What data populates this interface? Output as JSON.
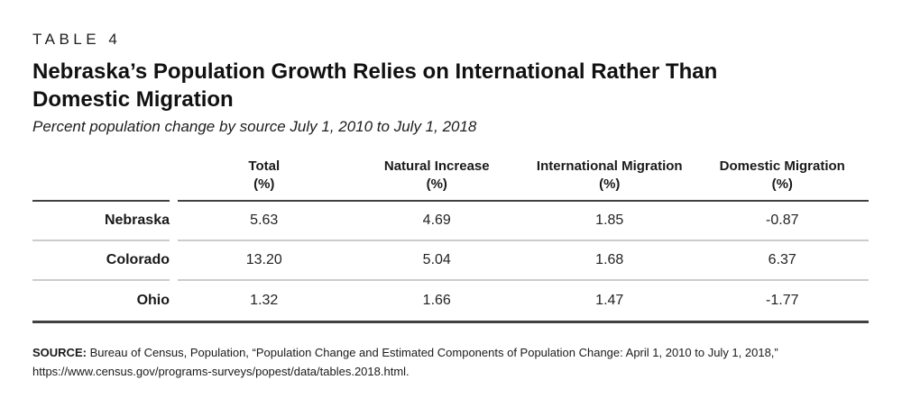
{
  "table_label": "TABLE 4",
  "title": "Nebraska’s Population Growth Relies on International Rather Than Domestic Migration",
  "subtitle": "Percent population change by source July 1, 2010 to July 1, 2018",
  "chart_data": {
    "type": "table",
    "columns": [
      {
        "name": "Total",
        "unit": "(%)"
      },
      {
        "name": "Natural Increase",
        "unit": "(%)"
      },
      {
        "name": "International Migration",
        "unit": "(%)"
      },
      {
        "name": "Domestic Migration",
        "unit": "(%)"
      }
    ],
    "rows": [
      {
        "label": "Nebraska",
        "values": [
          "5.63",
          "4.69",
          "1.85",
          "-0.87"
        ]
      },
      {
        "label": "Colorado",
        "values": [
          "13.20",
          "5.04",
          "1.68",
          "6.37"
        ]
      },
      {
        "label": "Ohio",
        "values": [
          "1.32",
          "1.66",
          "1.47",
          "-1.77"
        ]
      }
    ]
  },
  "source": {
    "label": "SOURCE:",
    "line1": "Bureau of Census, Population, “Population Change and Estimated Components of Population Change: April 1, 2010 to July 1, 2018,”",
    "line2": "https://www.census.gov/programs-surveys/popest/data/tables.2018.html."
  },
  "colors": {
    "background": "#ffffff",
    "text": "#231f20",
    "rule_dark": "#414042",
    "rule_light": "#cccccc"
  }
}
